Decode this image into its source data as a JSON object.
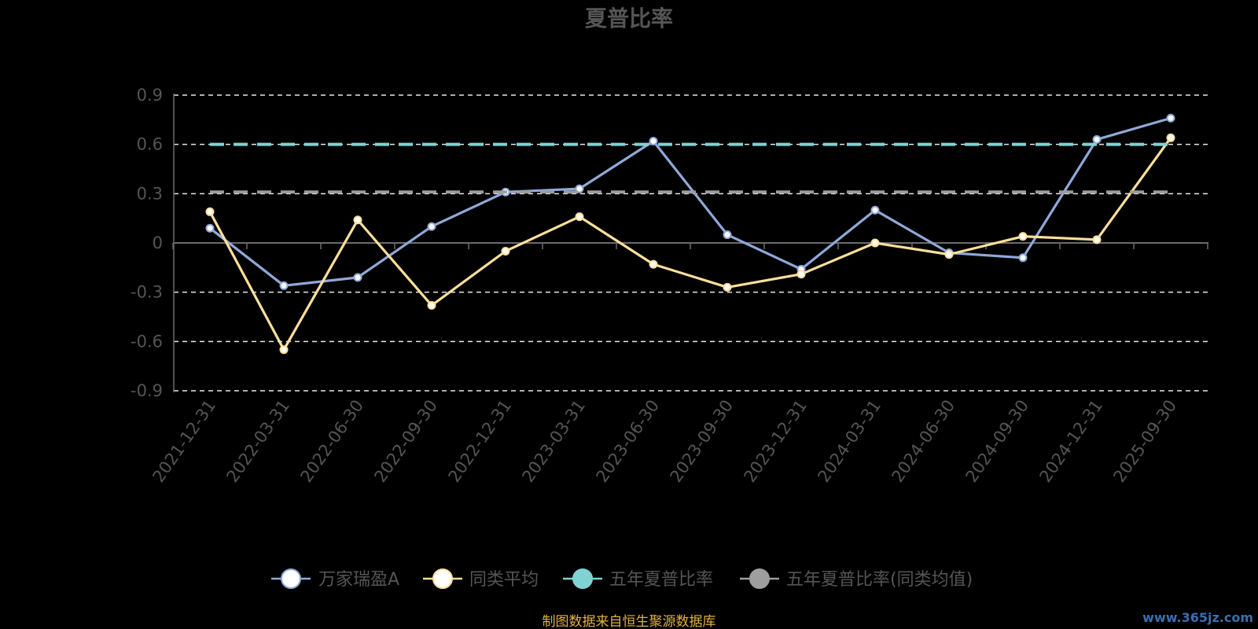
{
  "chart_data": {
    "type": "line",
    "title": "夏普比率",
    "xlabel": "",
    "ylabel": "",
    "categories": [
      "2021-12-31",
      "2022-03-31",
      "2022-06-30",
      "2022-09-30",
      "2022-12-31",
      "2023-03-31",
      "2023-06-30",
      "2023-09-30",
      "2023-12-31",
      "2024-03-31",
      "2024-06-30",
      "2024-09-30",
      "2024-12-31",
      "2025-09-30"
    ],
    "yticks": [
      0.9,
      0.6,
      0.3,
      0,
      -0.3,
      -0.6,
      -0.9
    ],
    "ytick_labels": [
      "0.9",
      "0.6",
      "0.3",
      "0",
      "-0.3",
      "-0.6",
      "-0.9"
    ],
    "ylim": [
      -0.9,
      0.9
    ],
    "grid": true,
    "legend_position": "bottom-center",
    "series": [
      {
        "name": "万家瑞盈A",
        "color": "#8fa8d8",
        "marker": "white",
        "values": [
          0.09,
          -0.26,
          -0.21,
          0.1,
          0.31,
          0.33,
          0.62,
          0.05,
          -0.16,
          0.2,
          -0.06,
          -0.09,
          0.63,
          0.76
        ]
      },
      {
        "name": "同类平均",
        "color": "#fddf9a",
        "marker": "white",
        "values": [
          0.19,
          -0.65,
          0.14,
          -0.38,
          -0.05,
          0.16,
          -0.13,
          -0.27,
          -0.19,
          0.0,
          -0.07,
          0.04,
          0.02,
          0.64
        ]
      },
      {
        "name": "五年夏普比率",
        "color": "#7fd3d3",
        "dashed": true,
        "values": [
          0.6,
          0.6,
          0.6,
          0.6,
          0.6,
          0.6,
          0.6,
          0.6,
          0.6,
          0.6,
          0.6,
          0.6,
          0.6,
          0.6
        ]
      },
      {
        "name": "五年夏普比率(同类均值)",
        "color": "#9e9e9e",
        "dashed": true,
        "values": [
          0.31,
          0.31,
          0.31,
          0.31,
          0.31,
          0.31,
          0.31,
          0.31,
          0.31,
          0.31,
          0.31,
          0.31,
          0.31,
          0.31
        ]
      }
    ]
  },
  "footer": {
    "source": "制图数据来自恒生聚源数据库",
    "watermark": "www.365jz.com"
  }
}
